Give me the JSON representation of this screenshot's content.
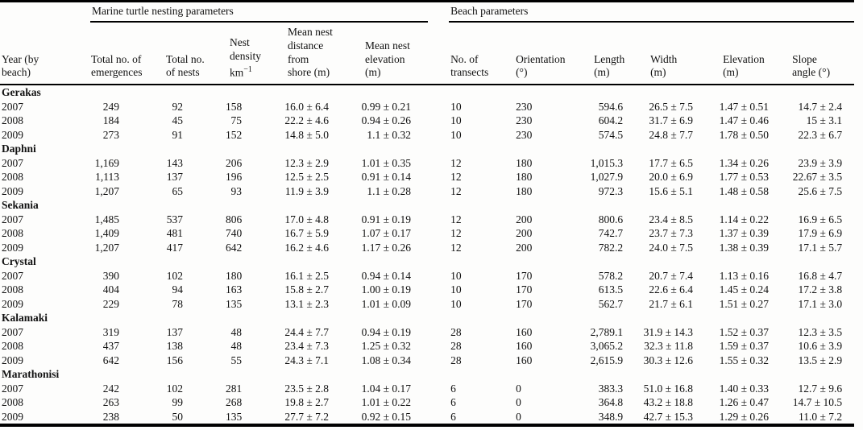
{
  "table": {
    "spanners": [
      {
        "label": "Marine turtle nesting parameters"
      },
      {
        "label": "Beach parameters"
      }
    ],
    "columns": [
      {
        "id": "year",
        "label": "Year (by\nbeach)"
      },
      {
        "id": "emergences",
        "label": "Total no. of\nemergences"
      },
      {
        "id": "nests",
        "label": "Total no.\nof nests"
      },
      {
        "id": "density",
        "label": "Nest\ndensity",
        "unit_base": "km",
        "unit_sup": "−1"
      },
      {
        "id": "distance",
        "label": "Mean nest\ndistance\nfrom\nshore (m)"
      },
      {
        "id": "nest_elevation",
        "label": "Mean nest\nelevation\n(m)"
      },
      {
        "id": "transects",
        "label": "No. of\ntransects"
      },
      {
        "id": "orientation",
        "label": "Orientation\n(°)"
      },
      {
        "id": "length",
        "label": "Length\n(m)"
      },
      {
        "id": "width",
        "label": "Width\n(m)"
      },
      {
        "id": "beach_elevation",
        "label": "Elevation\n(m)"
      },
      {
        "id": "slope",
        "label": "Slope\nangle (°)"
      }
    ],
    "sections": [
      {
        "beach": "Gerakas",
        "rows": [
          {
            "year": "2007",
            "values": [
              "249",
              "92",
              "158",
              "16.0 ± 6.4",
              "0.99 ± 0.21",
              "10",
              "230",
              "594.6",
              "26.5 ± 7.5",
              "1.47 ± 0.51",
              "14.7 ± 2.4"
            ]
          },
          {
            "year": "2008",
            "values": [
              "184",
              "45",
              "75",
              "22.2 ± 4.6",
              "0.94 ± 0.26",
              "10",
              "230",
              "604.2",
              "31.7 ± 6.9",
              "1.47 ± 0.46",
              "15 ± 3.1"
            ]
          },
          {
            "year": "2009",
            "values": [
              "273",
              "91",
              "152",
              "14.8 ± 5.0",
              "1.1 ± 0.32",
              "10",
              "230",
              "574.5",
              "24.8 ± 7.7",
              "1.78 ± 0.50",
              "22.3 ± 6.7"
            ]
          }
        ]
      },
      {
        "beach": "Daphni",
        "rows": [
          {
            "year": "2007",
            "values": [
              "1,169",
              "143",
              "206",
              "12.3 ± 2.9",
              "1.01 ± 0.35",
              "12",
              "180",
              "1,015.3",
              "17.7 ± 6.5",
              "1.34 ± 0.26",
              "23.9 ± 3.9"
            ]
          },
          {
            "year": "2008",
            "values": [
              "1,113",
              "137",
              "196",
              "12.5 ± 2.5",
              "0.91 ± 0.14",
              "12",
              "180",
              "1,027.9",
              "20.0 ± 6.9",
              "1.77 ± 0.53",
              "22.67 ± 3.5"
            ]
          },
          {
            "year": "2009",
            "values": [
              "1,207",
              "65",
              "93",
              "11.9 ± 3.9",
              "1.1 ± 0.28",
              "12",
              "180",
              "972.3",
              "15.6 ± 5.1",
              "1.48 ± 0.58",
              "25.6 ± 7.5"
            ]
          }
        ]
      },
      {
        "beach": "Sekania",
        "rows": [
          {
            "year": "2007",
            "values": [
              "1,485",
              "537",
              "806",
              "17.0 ± 4.8",
              "0.91 ± 0.19",
              "12",
              "200",
              "800.6",
              "23.4 ± 8.5",
              "1.14 ± 0.22",
              "16.9 ± 6.5"
            ]
          },
          {
            "year": "2008",
            "values": [
              "1,409",
              "481",
              "740",
              "16.7 ± 5.9",
              "1.07 ± 0.17",
              "12",
              "200",
              "742.7",
              "23.7 ± 7.3",
              "1.37 ± 0.39",
              "17.9 ± 6.9"
            ]
          },
          {
            "year": "2009",
            "values": [
              "1,207",
              "417",
              "642",
              "16.2 ± 4.6",
              "1.17 ± 0.26",
              "12",
              "200",
              "782.2",
              "24.0 ± 7.5",
              "1.38 ± 0.39",
              "17.1 ± 5.7"
            ]
          }
        ]
      },
      {
        "beach": "Crystal",
        "rows": [
          {
            "year": "2007",
            "values": [
              "390",
              "102",
              "180",
              "16.1 ± 2.5",
              "0.94 ± 0.14",
              "10",
              "170",
              "578.2",
              "20.7 ± 7.4",
              "1.13 ± 0.16",
              "16.8 ± 4.7"
            ]
          },
          {
            "year": "2008",
            "values": [
              "404",
              "94",
              "163",
              "15.8 ± 2.7",
              "1.00 ± 0.19",
              "10",
              "170",
              "613.5",
              "22.6 ± 6.4",
              "1.45 ± 0.24",
              "17.2 ± 3.8"
            ]
          },
          {
            "year": "2009",
            "values": [
              "229",
              "78",
              "135",
              "13.1 ± 2.3",
              "1.01 ± 0.09",
              "10",
              "170",
              "562.7",
              "21.7 ± 6.1",
              "1.51 ± 0.27",
              "17.1 ± 3.0"
            ]
          }
        ]
      },
      {
        "beach": "Kalamaki",
        "rows": [
          {
            "year": "2007",
            "values": [
              "319",
              "137",
              "48",
              "24.4 ± 7.7",
              "0.94 ± 0.19",
              "28",
              "160",
              "2,789.1",
              "31.9 ± 14.3",
              "1.52 ± 0.37",
              "12.3 ± 3.5"
            ]
          },
          {
            "year": "2008",
            "values": [
              "437",
              "138",
              "48",
              "23.4 ± 7.3",
              "1.25 ± 0.32",
              "28",
              "160",
              "3,065.2",
              "32.3 ± 11.8",
              "1.59 ± 0.37",
              "10.6 ± 3.9"
            ]
          },
          {
            "year": "2009",
            "values": [
              "642",
              "156",
              "55",
              "24.3 ± 7.1",
              "1.08 ± 0.34",
              "28",
              "160",
              "2,615.9",
              "30.3 ± 12.6",
              "1.55 ± 0.32",
              "13.5 ± 2.9"
            ]
          }
        ]
      },
      {
        "beach": "Marathonisi",
        "rows": [
          {
            "year": "2007",
            "values": [
              "242",
              "102",
              "281",
              "23.5 ± 2.8",
              "1.04 ± 0.17",
              "6",
              "0",
              "383.3",
              "51.0 ± 16.8",
              "1.40 ± 0.33",
              "12.7 ± 9.6"
            ]
          },
          {
            "year": "2008",
            "values": [
              "263",
              "99",
              "268",
              "19.8 ± 2.7",
              "1.01 ± 0.22",
              "6",
              "0",
              "364.8",
              "43.2 ± 18.8",
              "1.26 ± 0.47",
              "14.7 ± 10.5"
            ]
          },
          {
            "year": "2009",
            "values": [
              "238",
              "50",
              "135",
              "27.7 ± 7.2",
              "0.92 ± 0.15",
              "6",
              "0",
              "348.9",
              "42.7 ± 15.3",
              "1.29 ± 0.26",
              "11.0 ± 7.2"
            ]
          }
        ]
      }
    ]
  }
}
